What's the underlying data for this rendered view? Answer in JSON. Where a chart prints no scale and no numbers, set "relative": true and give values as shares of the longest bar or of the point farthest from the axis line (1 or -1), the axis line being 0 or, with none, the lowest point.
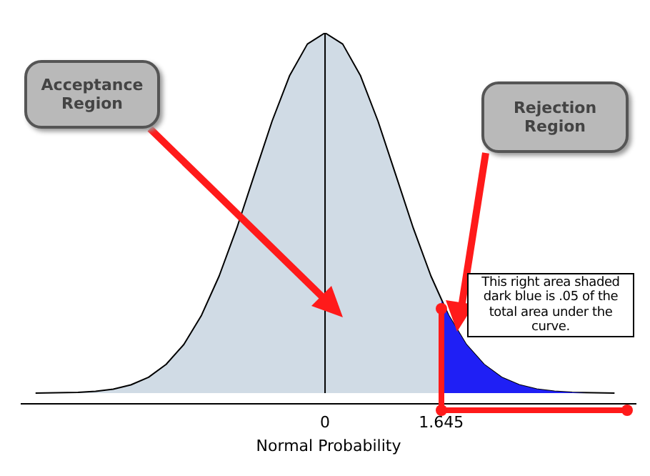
{
  "chart_data": {
    "type": "area",
    "relative": true,
    "xlabel": "Normal Probability",
    "xlim": [
      -4.3,
      4.4
    ],
    "xticks": [
      0,
      1.645
    ],
    "grid": false,
    "legend": false,
    "series": [
      {
        "color": "#d0dbe5",
        "x": [
          -4.1,
          -3.5,
          -3.25,
          -3,
          -2.75,
          -2.5,
          -2.25,
          -2,
          -1.75,
          -1.5,
          -1.25,
          -1,
          -0.75,
          -0.5,
          -0.25,
          0,
          0.25,
          0.5,
          0.75,
          1,
          1.25,
          1.5,
          1.75,
          2,
          2.25,
          2.5,
          2.75,
          3,
          3.25,
          3.5,
          4.1
        ],
        "values": [
          0,
          0.002,
          0.005,
          0.011,
          0.023,
          0.044,
          0.08,
          0.135,
          0.216,
          0.325,
          0.458,
          0.607,
          0.755,
          0.882,
          0.969,
          1,
          0.969,
          0.882,
          0.755,
          0.607,
          0.458,
          0.325,
          0.216,
          0.135,
          0.08,
          0.044,
          0.023,
          0.011,
          0.005,
          0.002,
          0
        ]
      },
      {
        "color": "#1f1ff5",
        "x": [
          1.645,
          1.75,
          2,
          2.25,
          2.5,
          2.75,
          3,
          3.25,
          3.5,
          3.7
        ],
        "values": [
          0.258,
          0.216,
          0.135,
          0.08,
          0.044,
          0.023,
          0.011,
          0.005,
          0.002,
          0
        ]
      }
    ],
    "ref_lines": [
      {
        "axis": "x",
        "value": 0,
        "color": "#000000"
      }
    ],
    "annotations": [
      "Acceptance Region",
      "Rejection Region",
      "This right area shaded dark blue is .05 of the total area under the curve."
    ]
  }
}
